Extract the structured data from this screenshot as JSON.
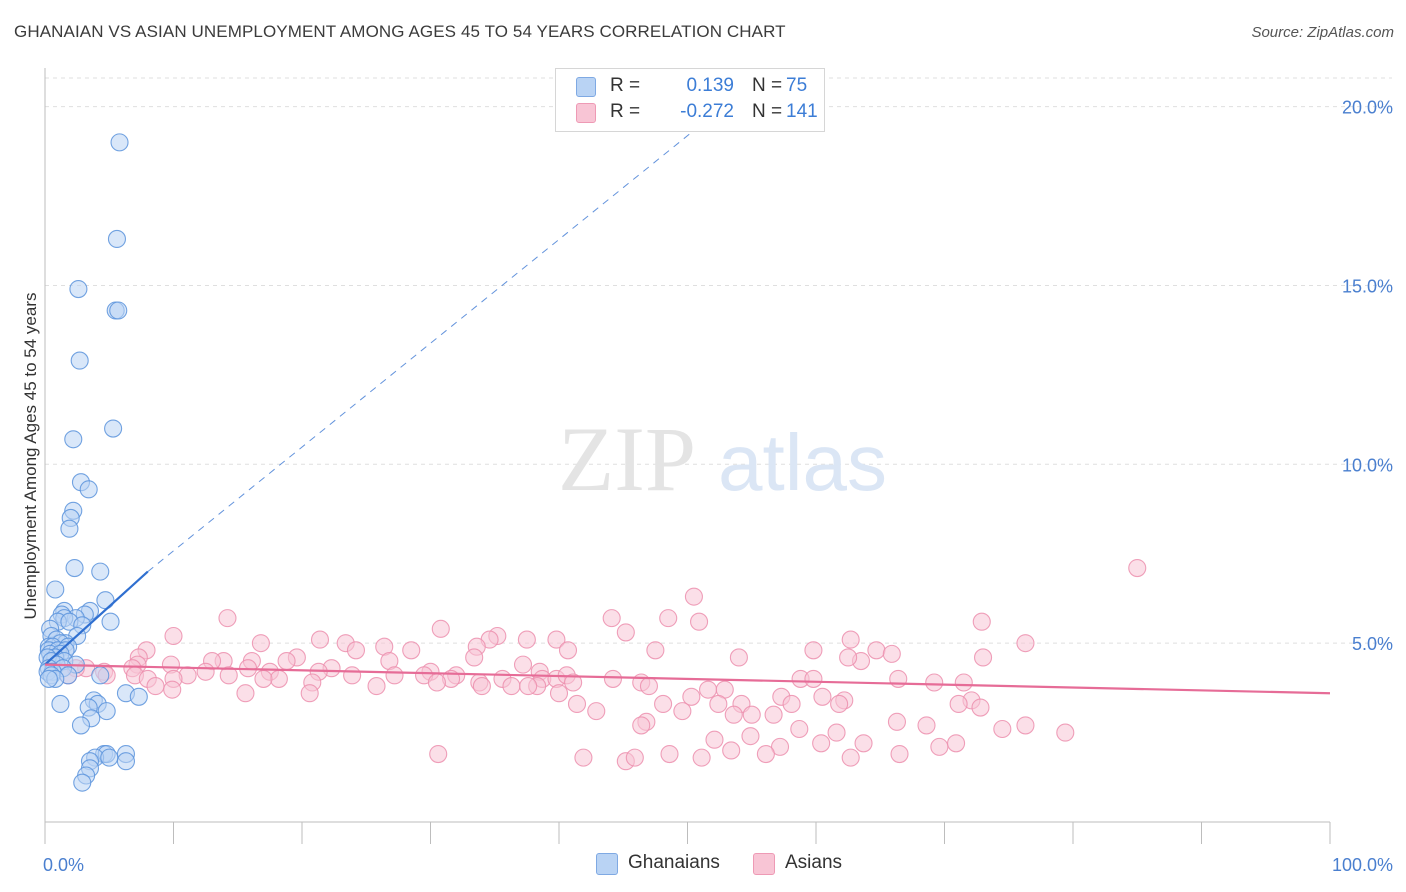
{
  "title": "GHANAIAN VS ASIAN UNEMPLOYMENT AMONG AGES 45 TO 54 YEARS CORRELATION CHART",
  "source": "Source: ZipAtlas.com",
  "watermark": {
    "zip": "ZIP",
    "atlas": "atlas"
  },
  "legend": {
    "r_label": "R =",
    "n_label": "N =",
    "rows": [
      {
        "r": "0.139",
        "n": "75",
        "color": "#7fa9e3"
      },
      {
        "r": "-0.272",
        "n": "141",
        "color": "#ee9ab5"
      }
    ]
  },
  "colors": {
    "blue_fill": "#b9d3f4",
    "blue_stroke": "#5b93dc",
    "blue_line": "#2f6fd0",
    "pink_fill": "#f8c5d5",
    "pink_stroke": "#ec8fae",
    "pink_line": "#e66c97",
    "tick_label": "#4a7fcf",
    "grid": "#dfdfdf"
  },
  "chart_data": {
    "type": "scatter",
    "title": "GHANAIAN VS ASIAN UNEMPLOYMENT AMONG AGES 45 TO 54 YEARS CORRELATION CHART",
    "xlabel": "",
    "ylabel": "Unemployment Among Ages 45 to 54 years",
    "xlim": [
      0,
      100
    ],
    "ylim": [
      0,
      20.8
    ],
    "x_tick_labels": [
      "0.0%",
      "100.0%"
    ],
    "y_ticks": [
      5,
      10,
      15,
      20
    ],
    "y_tick_labels": [
      "5.0%",
      "10.0%",
      "15.0%",
      "20.0%"
    ],
    "grid": true,
    "legend_position": "top-center",
    "series": [
      {
        "name": "Ghanaians",
        "points": [
          [
            5.8,
            19.0
          ],
          [
            5.6,
            16.3
          ],
          [
            2.6,
            14.9
          ],
          [
            5.5,
            14.3
          ],
          [
            5.7,
            14.3
          ],
          [
            2.7,
            12.9
          ],
          [
            5.3,
            11.0
          ],
          [
            2.2,
            10.7
          ],
          [
            2.8,
            9.5
          ],
          [
            3.4,
            9.3
          ],
          [
            2.2,
            8.7
          ],
          [
            2.0,
            8.5
          ],
          [
            1.9,
            8.2
          ],
          [
            2.3,
            7.1
          ],
          [
            4.3,
            7.0
          ],
          [
            0.8,
            6.5
          ],
          [
            4.7,
            6.2
          ],
          [
            1.5,
            5.9
          ],
          [
            3.5,
            5.9
          ],
          [
            3.1,
            5.8
          ],
          [
            1.3,
            5.8
          ],
          [
            2.4,
            5.7
          ],
          [
            1.5,
            5.7
          ],
          [
            1.0,
            5.6
          ],
          [
            1.9,
            5.6
          ],
          [
            5.1,
            5.6
          ],
          [
            2.9,
            5.5
          ],
          [
            0.4,
            5.4
          ],
          [
            0.5,
            5.2
          ],
          [
            2.5,
            5.2
          ],
          [
            0.9,
            5.1
          ],
          [
            1.6,
            5.0
          ],
          [
            1.2,
            5.0
          ],
          [
            0.3,
            4.9
          ],
          [
            0.6,
            4.9
          ],
          [
            1.8,
            4.9
          ],
          [
            0.3,
            4.8
          ],
          [
            1.0,
            4.8
          ],
          [
            1.6,
            4.8
          ],
          [
            0.4,
            4.7
          ],
          [
            1.2,
            4.7
          ],
          [
            0.8,
            4.6
          ],
          [
            0.2,
            4.6
          ],
          [
            1.5,
            4.5
          ],
          [
            0.5,
            4.5
          ],
          [
            0.9,
            4.4
          ],
          [
            2.4,
            4.4
          ],
          [
            0.3,
            4.3
          ],
          [
            1.4,
            4.3
          ],
          [
            0.6,
            4.2
          ],
          [
            0.2,
            4.2
          ],
          [
            4.3,
            4.1
          ],
          [
            1.8,
            4.1
          ],
          [
            0.5,
            4.1
          ],
          [
            0.8,
            4.0
          ],
          [
            0.3,
            4.0
          ],
          [
            6.3,
            3.6
          ],
          [
            7.3,
            3.5
          ],
          [
            3.8,
            3.4
          ],
          [
            4.1,
            3.3
          ],
          [
            1.2,
            3.3
          ],
          [
            3.4,
            3.2
          ],
          [
            4.8,
            3.1
          ],
          [
            3.6,
            2.9
          ],
          [
            2.8,
            2.7
          ],
          [
            4.6,
            1.9
          ],
          [
            6.3,
            1.9
          ],
          [
            4.8,
            1.9
          ],
          [
            3.9,
            1.8
          ],
          [
            5.0,
            1.8
          ],
          [
            3.5,
            1.7
          ],
          [
            6.3,
            1.7
          ],
          [
            3.5,
            1.5
          ],
          [
            3.2,
            1.3
          ],
          [
            2.9,
            1.1
          ]
        ]
      },
      {
        "name": "Asians",
        "points": [
          [
            85.0,
            7.1
          ],
          [
            50.5,
            6.3
          ],
          [
            14.2,
            5.7
          ],
          [
            44.1,
            5.7
          ],
          [
            48.5,
            5.7
          ],
          [
            72.9,
            5.6
          ],
          [
            50.9,
            5.6
          ],
          [
            30.8,
            5.4
          ],
          [
            45.2,
            5.3
          ],
          [
            35.2,
            5.2
          ],
          [
            37.5,
            5.1
          ],
          [
            10.0,
            5.2
          ],
          [
            21.4,
            5.1
          ],
          [
            34.6,
            5.1
          ],
          [
            39.8,
            5.1
          ],
          [
            76.3,
            5.0
          ],
          [
            16.8,
            5.0
          ],
          [
            23.4,
            5.0
          ],
          [
            26.4,
            4.9
          ],
          [
            33.6,
            4.9
          ],
          [
            24.2,
            4.8
          ],
          [
            28.5,
            4.8
          ],
          [
            40.7,
            4.8
          ],
          [
            47.5,
            4.8
          ],
          [
            59.8,
            4.8
          ],
          [
            62.7,
            5.1
          ],
          [
            64.7,
            4.8
          ],
          [
            7.9,
            4.8
          ],
          [
            65.9,
            4.7
          ],
          [
            73.0,
            4.6
          ],
          [
            63.5,
            4.5
          ],
          [
            7.3,
            4.6
          ],
          [
            19.6,
            4.6
          ],
          [
            33.4,
            4.6
          ],
          [
            54.0,
            4.6
          ],
          [
            13.9,
            4.5
          ],
          [
            62.5,
            4.6
          ],
          [
            16.1,
            4.5
          ],
          [
            13.0,
            4.5
          ],
          [
            18.8,
            4.5
          ],
          [
            26.8,
            4.5
          ],
          [
            37.2,
            4.4
          ],
          [
            9.8,
            4.4
          ],
          [
            7.2,
            4.4
          ],
          [
            22.3,
            4.3
          ],
          [
            6.8,
            4.3
          ],
          [
            12.5,
            4.2
          ],
          [
            15.8,
            4.3
          ],
          [
            3.2,
            4.3
          ],
          [
            2.4,
            4.3
          ],
          [
            17.5,
            4.2
          ],
          [
            38.5,
            4.2
          ],
          [
            30.0,
            4.2
          ],
          [
            29.5,
            4.1
          ],
          [
            4.6,
            4.2
          ],
          [
            21.3,
            4.2
          ],
          [
            23.9,
            4.1
          ],
          [
            32.0,
            4.1
          ],
          [
            7.0,
            4.1
          ],
          [
            4.8,
            4.1
          ],
          [
            1.8,
            4.1
          ],
          [
            8.0,
            4.0
          ],
          [
            11.1,
            4.1
          ],
          [
            27.2,
            4.1
          ],
          [
            14.3,
            4.1
          ],
          [
            18.2,
            4.0
          ],
          [
            31.6,
            4.0
          ],
          [
            38.7,
            4.0
          ],
          [
            39.8,
            4.0
          ],
          [
            35.6,
            4.0
          ],
          [
            44.2,
            4.0
          ],
          [
            40.6,
            4.1
          ],
          [
            58.8,
            4.0
          ],
          [
            59.8,
            4.0
          ],
          [
            66.4,
            4.0
          ],
          [
            69.2,
            3.9
          ],
          [
            71.5,
            3.9
          ],
          [
            10.0,
            4.0
          ],
          [
            20.8,
            3.9
          ],
          [
            17.0,
            4.0
          ],
          [
            30.5,
            3.9
          ],
          [
            33.8,
            3.9
          ],
          [
            41.1,
            3.9
          ],
          [
            46.4,
            3.9
          ],
          [
            47.0,
            3.8
          ],
          [
            25.8,
            3.8
          ],
          [
            8.6,
            3.8
          ],
          [
            34.0,
            3.8
          ],
          [
            38.3,
            3.8
          ],
          [
            51.6,
            3.7
          ],
          [
            52.9,
            3.7
          ],
          [
            9.9,
            3.7
          ],
          [
            36.3,
            3.8
          ],
          [
            37.6,
            3.8
          ],
          [
            40.0,
            3.6
          ],
          [
            57.3,
            3.5
          ],
          [
            15.6,
            3.6
          ],
          [
            20.6,
            3.6
          ],
          [
            50.3,
            3.5
          ],
          [
            60.5,
            3.5
          ],
          [
            62.2,
            3.4
          ],
          [
            72.1,
            3.4
          ],
          [
            71.1,
            3.3
          ],
          [
            72.8,
            3.2
          ],
          [
            52.4,
            3.3
          ],
          [
            54.2,
            3.3
          ],
          [
            58.1,
            3.3
          ],
          [
            61.8,
            3.3
          ],
          [
            41.4,
            3.3
          ],
          [
            48.1,
            3.3
          ],
          [
            42.9,
            3.1
          ],
          [
            49.6,
            3.1
          ],
          [
            53.6,
            3.0
          ],
          [
            55.0,
            3.0
          ],
          [
            56.7,
            3.0
          ],
          [
            46.8,
            2.8
          ],
          [
            46.4,
            2.7
          ],
          [
            66.3,
            2.8
          ],
          [
            68.6,
            2.7
          ],
          [
            76.3,
            2.7
          ],
          [
            74.5,
            2.6
          ],
          [
            79.4,
            2.5
          ],
          [
            58.7,
            2.6
          ],
          [
            61.6,
            2.5
          ],
          [
            54.9,
            2.4
          ],
          [
            52.1,
            2.3
          ],
          [
            60.4,
            2.2
          ],
          [
            57.2,
            2.1
          ],
          [
            63.7,
            2.2
          ],
          [
            70.9,
            2.2
          ],
          [
            69.6,
            2.1
          ],
          [
            53.4,
            2.0
          ],
          [
            30.6,
            1.9
          ],
          [
            41.9,
            1.8
          ],
          [
            48.6,
            1.9
          ],
          [
            56.1,
            1.9
          ],
          [
            45.2,
            1.7
          ],
          [
            51.1,
            1.8
          ],
          [
            62.7,
            1.8
          ],
          [
            45.9,
            1.8
          ],
          [
            66.5,
            1.9
          ]
        ]
      }
    ],
    "trendlines": [
      {
        "series": "Ghanaians",
        "solid": [
          [
            0.0,
            4.4
          ],
          [
            8.0,
            7.0
          ]
        ],
        "dashed": [
          [
            8.0,
            7.0
          ],
          [
            52.8,
            20.0
          ]
        ]
      },
      {
        "series": "Asians",
        "solid": [
          [
            0.0,
            4.4
          ],
          [
            100.0,
            3.6
          ]
        ]
      }
    ]
  }
}
